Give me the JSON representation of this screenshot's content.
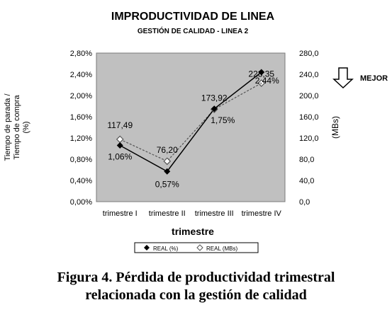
{
  "chart_data": {
    "type": "line",
    "title": "IMPRODUCTIVIDAD DE LINEA",
    "subtitle": "GESTIÓN DE CALIDAD - LINEA 2",
    "xlabel": "trimestre",
    "ylabel_left": [
      "Tiempo de parada /",
      "Tiempo de compra",
      "(%)"
    ],
    "ylabel_right": "(MBs)",
    "categories": [
      "trimestre I",
      "trimestre II",
      "trimestre III",
      "trimestre IV"
    ],
    "y_left_ticks": [
      "0,00%",
      "0,40%",
      "0,80%",
      "1,20%",
      "1,60%",
      "2,00%",
      "2,40%",
      "2,80%"
    ],
    "y_right_ticks": [
      "0,0",
      "40,0",
      "80,0",
      "120,0",
      "160,0",
      "200,0",
      "240,0",
      "280,0"
    ],
    "ylim_left": [
      0,
      2.8
    ],
    "ylim_right": [
      0,
      280
    ],
    "series": [
      {
        "name": "REAL (%)",
        "axis": "left",
        "values": [
          1.06,
          0.57,
          1.75,
          2.44
        ],
        "labels": [
          "1,06%",
          "0,57%",
          "1,75%",
          "2,44%"
        ],
        "color": "#000000",
        "marker": "filled-diamond"
      },
      {
        "name": "REAL (MBs)",
        "axis": "right",
        "values": [
          117.49,
          76.2,
          173.92,
          223.35
        ],
        "labels": [
          "117,49",
          "76,20",
          "173,92",
          "223,35"
        ],
        "color": "#555555",
        "marker": "hollow-diamond"
      }
    ],
    "grid": false,
    "legend_position": "bottom",
    "plot_background": "#c0c0c0",
    "annotation": "MEJOR"
  },
  "caption": {
    "line1": "Figura 4. Pérdida de productividad trimestral",
    "line2": "relacionada con la gestión de calidad"
  }
}
